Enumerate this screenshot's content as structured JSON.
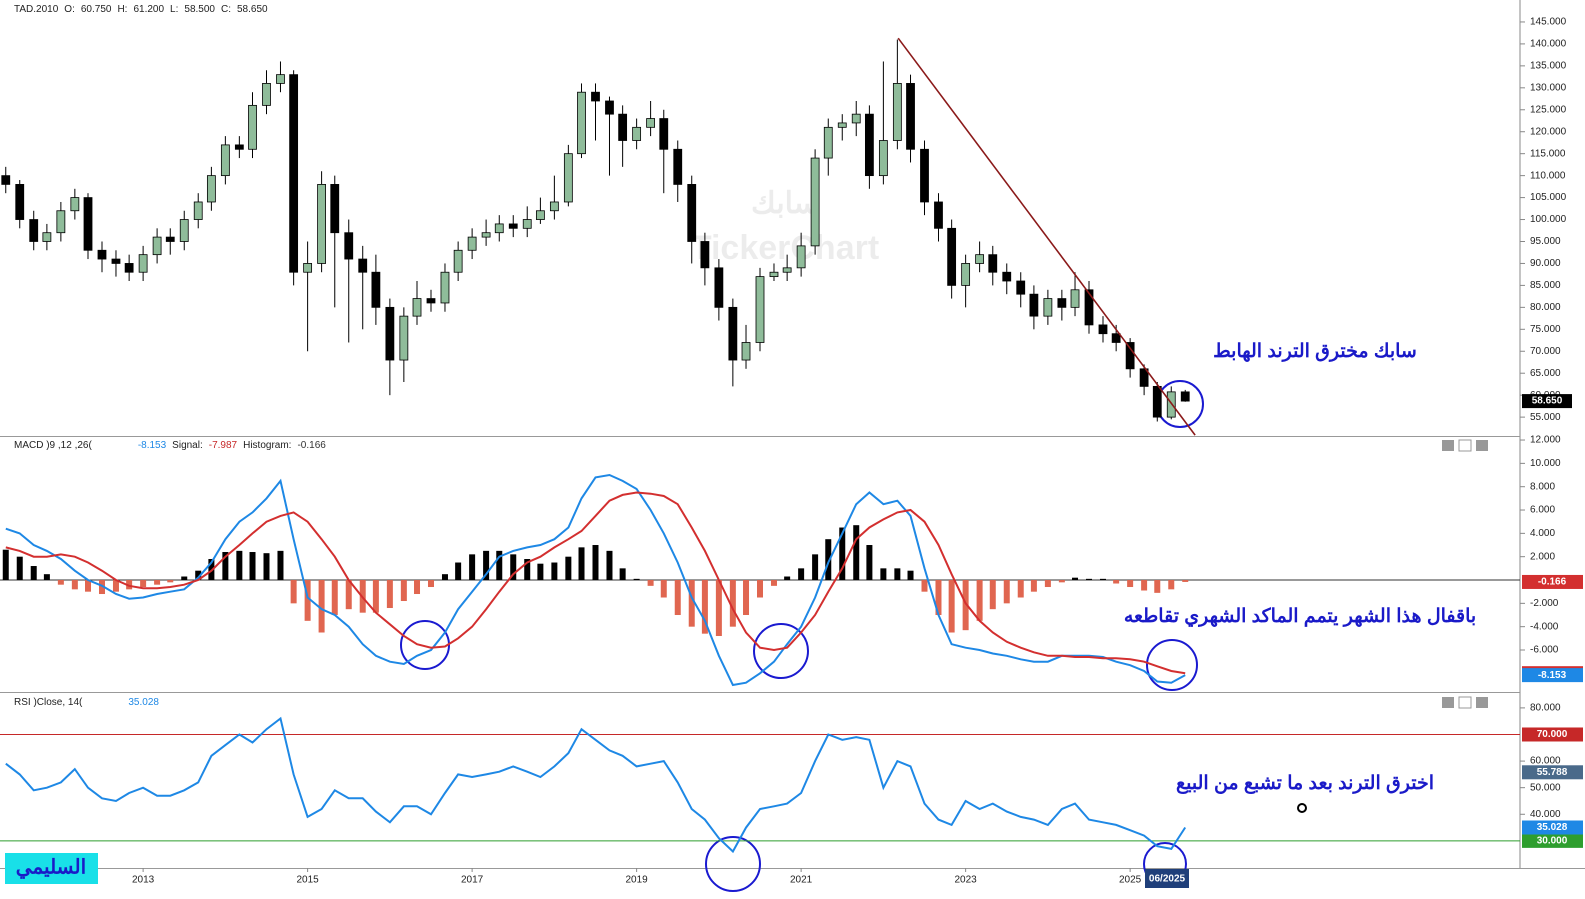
{
  "signature": "السليمي",
  "chart_data": [
    {
      "type": "candlestick",
      "title": "TAD.2010",
      "header_values": [
        {
          "name": "O:",
          "value": 60.75,
          "label": "60.750"
        },
        {
          "name": "H:",
          "value": 61.2,
          "label": "61.200"
        },
        {
          "name": "L:",
          "value": 58.5,
          "label": "58.500"
        },
        {
          "name": "C:",
          "value": 58.65,
          "label": "58.650"
        }
      ],
      "watermark": [
        "سابك",
        "TickerChart"
      ],
      "annotation": "سابك مخترق الترند الهابط",
      "cursor_label": "06/2025",
      "x": [
        2011.33,
        2011.5,
        2011.67,
        2011.83,
        2012,
        2012.17,
        2012.33,
        2012.5,
        2012.67,
        2012.83,
        2013,
        2013.17,
        2013.33,
        2013.5,
        2013.67,
        2013.83,
        2014,
        2014.17,
        2014.33,
        2014.5,
        2014.67,
        2014.83,
        2015,
        2015.17,
        2015.33,
        2015.5,
        2015.67,
        2015.83,
        2016,
        2016.17,
        2016.33,
        2016.5,
        2016.67,
        2016.83,
        2017,
        2017.17,
        2017.33,
        2017.5,
        2017.67,
        2017.83,
        2018,
        2018.17,
        2018.33,
        2018.5,
        2018.67,
        2018.83,
        2019,
        2019.17,
        2019.33,
        2019.5,
        2019.67,
        2019.83,
        2020,
        2020.17,
        2020.33,
        2020.5,
        2020.67,
        2020.83,
        2021,
        2021.17,
        2021.33,
        2021.5,
        2021.67,
        2021.83,
        2022,
        2022.17,
        2022.33,
        2022.5,
        2022.67,
        2022.83,
        2023,
        2023.17,
        2023.33,
        2023.5,
        2023.67,
        2023.83,
        2024,
        2024.17,
        2024.33,
        2024.5,
        2024.67,
        2024.83,
        2025,
        2025.17,
        2025.33,
        2025.5,
        2025.67
      ],
      "open": [
        110,
        108,
        100,
        95,
        97,
        102,
        105,
        93,
        91,
        90,
        88,
        92,
        96,
        95,
        100,
        104,
        110,
        117,
        116,
        126,
        131,
        133,
        88,
        90,
        108,
        97,
        91,
        88,
        80,
        68,
        78,
        82,
        81,
        88,
        93,
        96,
        97,
        99,
        98,
        100,
        102,
        104,
        115,
        129,
        127,
        124,
        118,
        121,
        123,
        116,
        108,
        95,
        89,
        80,
        68,
        72,
        87,
        88,
        89,
        94,
        114,
        121,
        122,
        124,
        110,
        118,
        131,
        116,
        104,
        98,
        85,
        90,
        92,
        88,
        86,
        83,
        78,
        82,
        80,
        84,
        76,
        74,
        72,
        66,
        62,
        55,
        60.75
      ],
      "high": [
        112,
        109,
        102,
        99,
        104,
        107,
        106,
        95,
        93,
        92,
        94,
        98,
        98,
        102,
        106,
        112,
        119,
        119,
        129,
        134,
        136,
        134,
        95,
        111,
        110,
        100,
        94,
        92,
        82,
        80,
        86,
        84,
        90,
        95,
        98,
        100,
        101,
        101,
        103,
        105,
        110,
        117,
        131,
        131,
        128,
        126,
        123,
        127,
        125,
        118,
        110,
        97,
        91,
        82,
        76,
        89,
        90,
        92,
        97,
        116,
        123,
        124,
        127,
        126,
        136,
        141,
        133,
        118,
        106,
        100,
        92,
        95,
        94,
        90,
        88,
        85,
        84,
        84,
        88,
        86,
        78,
        76,
        73,
        67,
        63,
        62,
        61.2
      ],
      "low": [
        106,
        98,
        93,
        93,
        95,
        100,
        91,
        88,
        87,
        86,
        86,
        90,
        92,
        93,
        98,
        102,
        108,
        114,
        114,
        124,
        129,
        85,
        70,
        88,
        80,
        72,
        75,
        76,
        60,
        63,
        76,
        79,
        79,
        86,
        91,
        94,
        95,
        96,
        96,
        99,
        100,
        103,
        114,
        118,
        110,
        112,
        116,
        119,
        106,
        104,
        90,
        85,
        77,
        62,
        66,
        70,
        86,
        86,
        87,
        92,
        110,
        118,
        119,
        107,
        108,
        116,
        113,
        101,
        95,
        82,
        80,
        88,
        85,
        83,
        80,
        75,
        76,
        77,
        78,
        74,
        72,
        70,
        64,
        60,
        54,
        54.5,
        58.5
      ],
      "close": [
        108,
        100,
        95,
        97,
        102,
        105,
        93,
        91,
        90,
        88,
        92,
        96,
        95,
        100,
        104,
        110,
        117,
        116,
        126,
        131,
        133,
        88,
        90,
        108,
        97,
        91,
        88,
        80,
        68,
        78,
        82,
        81,
        88,
        93,
        96,
        97,
        99,
        98,
        100,
        102,
        104,
        115,
        129,
        127,
        124,
        118,
        121,
        123,
        116,
        108,
        95,
        89,
        80,
        68,
        72,
        87,
        88,
        89,
        94,
        114,
        121,
        122,
        124,
        110,
        118,
        131,
        116,
        104,
        98,
        85,
        90,
        92,
        88,
        86,
        83,
        78,
        82,
        80,
        84,
        76,
        74,
        72,
        66,
        62,
        55,
        60.75,
        58.65
      ],
      "up_color": "#8fbc9a",
      "down_color": "#000000",
      "trendline": {
        "color": "#8b1a1a",
        "x": [
          2022.18,
          2025.79
        ],
        "y": [
          141.3,
          50.9
        ]
      },
      "last_tag": {
        "value": 58.65,
        "label": "58.650"
      },
      "xlim": [
        2011.26,
        2029.74
      ],
      "xticks": [
        2013,
        2015,
        2017,
        2019,
        2021,
        2023,
        2025
      ],
      "ylim": [
        50.7,
        150
      ],
      "yticks": [
        {
          "value": 55,
          "label": "55.000"
        },
        {
          "value": 60,
          "label": "60.000"
        },
        {
          "value": 65,
          "label": "65.000"
        },
        {
          "value": 70,
          "label": "70.000"
        },
        {
          "value": 75,
          "label": "75.000"
        },
        {
          "value": 80,
          "label": "80.000"
        },
        {
          "value": 85,
          "label": "85.000"
        },
        {
          "value": 90,
          "label": "90.000"
        },
        {
          "value": 95,
          "label": "95.000"
        },
        {
          "value": 100,
          "label": "100.000"
        },
        {
          "value": 105,
          "label": "105.000"
        },
        {
          "value": 110,
          "label": "110.000"
        },
        {
          "value": 115,
          "label": "115.000"
        },
        {
          "value": 120,
          "label": "120.000"
        },
        {
          "value": 125,
          "label": "125.000"
        },
        {
          "value": 130,
          "label": "130.000"
        },
        {
          "value": 135,
          "label": "135.000"
        },
        {
          "value": 140,
          "label": "140.000"
        },
        {
          "value": 145,
          "label": "145.000"
        }
      ]
    },
    {
      "type": "macd",
      "title": "MACD )9 ,12 ,26(",
      "header_values": [
        {
          "value": -8.153,
          "label": "-8.153",
          "color": "#1e88e5"
        },
        {
          "name": "Signal:",
          "value": -7.987,
          "label": "-7.987",
          "color": "#c62828"
        },
        {
          "name": "Histogram:",
          "value": -0.166,
          "label": "-0.166",
          "color": "#333333"
        }
      ],
      "annotation": "باقفال هذا الشهر يتمم الماكد الشهري تقاطعه",
      "macd": [
        4.4,
        4.0,
        3.0,
        2.5,
        1.8,
        0.8,
        0,
        -0.5,
        -1.2,
        -1.6,
        -1.5,
        -1.2,
        -1.0,
        -0.8,
        0.2,
        1.5,
        3.5,
        5.0,
        5.8,
        7.0,
        8.5,
        3.5,
        -1.5,
        -2.5,
        -3.0,
        -4.0,
        -5.5,
        -6.5,
        -7.0,
        -7.2,
        -6.5,
        -6.0,
        -4.5,
        -2.5,
        -1.0,
        0.5,
        2.0,
        2.5,
        2.8,
        3.0,
        3.5,
        4.5,
        7.0,
        8.8,
        9.0,
        8.5,
        7.8,
        6.0,
        4.0,
        1.5,
        -1.5,
        -3.5,
        -6.5,
        -9.0,
        -8.8,
        -8.0,
        -7.0,
        -5.5,
        -4.0,
        -1.5,
        1.5,
        4.0,
        6.5,
        7.5,
        6.5,
        6.8,
        5.5,
        1.0,
        -3.0,
        -5.5,
        -5.8,
        -6.0,
        -6.3,
        -6.5,
        -6.8,
        -7.0,
        -7.0,
        -6.5,
        -6.5,
        -6.5,
        -6.6,
        -7.0,
        -7.3,
        -7.8,
        -8.7,
        -8.8,
        -8.153
      ],
      "signal": [
        2.8,
        2.5,
        2.0,
        2.0,
        2.2,
        2.0,
        1.5,
        0.8,
        0,
        -0.5,
        -0.7,
        -0.7,
        -0.6,
        -0.4,
        0,
        0.8,
        2.0,
        3.0,
        4.0,
        5.0,
        5.5,
        5.8,
        5.0,
        3.5,
        2.0,
        0,
        -1.5,
        -2.8,
        -3.8,
        -4.8,
        -5.5,
        -5.8,
        -5.7,
        -5.0,
        -4.0,
        -2.5,
        -1.0,
        0.5,
        1.5,
        2.0,
        2.8,
        3.5,
        4.2,
        5.5,
        6.8,
        7.3,
        7.5,
        7.4,
        7.2,
        6.5,
        4.5,
        2.5,
        0,
        -2.5,
        -4.5,
        -5.8,
        -6.0,
        -5.8,
        -4.5,
        -3.0,
        -1.0,
        1.0,
        3.5,
        4.5,
        5.2,
        5.8,
        6.0,
        5.0,
        3.0,
        0.5,
        -2.0,
        -3.5,
        -4.5,
        -5.3,
        -5.8,
        -6.2,
        -6.5,
        -6.5,
        -6.6,
        -6.6,
        -6.7,
        -6.7,
        -6.8,
        -7.0,
        -7.4,
        -7.8,
        -7.987
      ],
      "histogram": [
        2.6,
        2.0,
        1.2,
        0.5,
        -0.4,
        -0.8,
        -1.0,
        -1.2,
        -1.0,
        -0.8,
        -0.6,
        -0.4,
        -0.2,
        0.3,
        0.8,
        1.8,
        2.4,
        2.5,
        2.4,
        2.3,
        2.5,
        -2.0,
        -3.5,
        -4.5,
        -3.0,
        -2.5,
        -2.8,
        -2.8,
        -2.4,
        -1.8,
        -1.2,
        -0.6,
        0.5,
        1.5,
        2.2,
        2.5,
        2.5,
        2.2,
        1.8,
        1.4,
        1.5,
        2.0,
        2.8,
        3.0,
        2.5,
        1.0,
        0.1,
        -0.5,
        -1.5,
        -3.0,
        -4.0,
        -4.6,
        -4.8,
        -4.0,
        -3.0,
        -1.5,
        -0.5,
        0.3,
        1.0,
        2.2,
        3.5,
        4.5,
        4.7,
        3.0,
        1.0,
        1.0,
        0.8,
        -1.0,
        -3.0,
        -4.5,
        -4.3,
        -3.5,
        -2.5,
        -2.0,
        -1.5,
        -1.0,
        -0.6,
        -0.2,
        0.2,
        0.1,
        0.1,
        -0.3,
        -0.6,
        -0.9,
        -1.1,
        -0.8,
        -0.166
      ],
      "macd_color": "#1e88e5",
      "signal_color": "#d32f2f",
      "hist_up_color": "#000000",
      "hist_down_color": "#e06650",
      "tags": [
        {
          "value": -0.166,
          "label": "-0.166",
          "color": "#d32f2f"
        },
        {
          "value": -7.987,
          "label": "-7.987",
          "color": "#d32f2f"
        },
        {
          "value": -8.153,
          "label": "-8.153",
          "color": "#1e88e5"
        }
      ],
      "ylim": [
        -9.6,
        12.26
      ],
      "yticks": [
        {
          "value": -6,
          "label": "-6.000"
        },
        {
          "value": -4,
          "label": "-4.000"
        },
        {
          "value": -2,
          "label": "-2.000"
        },
        {
          "value": 2,
          "label": "2.000"
        },
        {
          "value": 4,
          "label": "4.000"
        },
        {
          "value": 6,
          "label": "6.000"
        },
        {
          "value": 8,
          "label": "8.000"
        },
        {
          "value": 10,
          "label": "10.000"
        },
        {
          "value": 12,
          "label": "12.000"
        }
      ]
    },
    {
      "type": "rsi",
      "title": "RSI )Close, 14(",
      "header_values": [
        {
          "value": 35.028,
          "label": "35.028",
          "color": "#1e88e5"
        }
      ],
      "annotation": "اخترق الترند بعد ما تشبع من البيع",
      "values": [
        59,
        55,
        49,
        50,
        52,
        57,
        50,
        46,
        45,
        48,
        50,
        47,
        47,
        49,
        52,
        62,
        66,
        70,
        67,
        72,
        76,
        55,
        39,
        42,
        49,
        46,
        46,
        41,
        37,
        43,
        43,
        40,
        48,
        55,
        54,
        55,
        56,
        58,
        56,
        54,
        58,
        63,
        72,
        68,
        64,
        62,
        58,
        59,
        60,
        52,
        42,
        38,
        31,
        26,
        35,
        42,
        43,
        44,
        48,
        60,
        70,
        68,
        69,
        68,
        50,
        60,
        58,
        44,
        38,
        36,
        45,
        42,
        44,
        41,
        39,
        38,
        36,
        42,
        44,
        38,
        37,
        36,
        34,
        32,
        28,
        27,
        35.028
      ],
      "color": "#1e88e5",
      "levels": [
        {
          "value": 70,
          "label": "70.000",
          "color": "#c62828"
        },
        {
          "value": 30,
          "label": "30.000",
          "color": "#2e9e2e"
        }
      ],
      "tags": [
        {
          "value": 55.788,
          "label": "55.788",
          "color": "#4a6a8a"
        },
        {
          "value": 35.028,
          "label": "35.028",
          "color": "#1e88e5"
        }
      ],
      "ylim": [
        19.8,
        85.6
      ],
      "yticks": [
        {
          "value": 40,
          "label": "40.000"
        },
        {
          "value": 50,
          "label": "50.000"
        },
        {
          "value": 60,
          "label": "60.000"
        },
        {
          "value": 80,
          "label": "80.000"
        }
      ]
    }
  ]
}
